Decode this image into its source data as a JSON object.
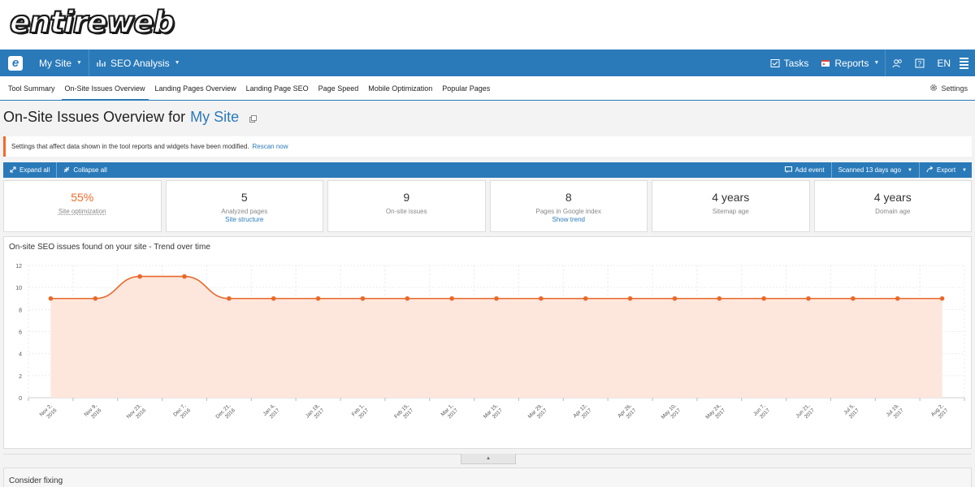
{
  "brand": {
    "logo_text": "entireweb"
  },
  "topbar": {
    "logo_letter": "e",
    "site_menu": "My Site",
    "analysis_menu": "SEO Analysis",
    "tasks": "Tasks",
    "reports": "Reports",
    "language": "EN",
    "colors": {
      "bar": "#2a7ab9"
    }
  },
  "tabs": {
    "items": [
      "Tool Summary",
      "On-Site Issues Overview",
      "Landing Pages Overview",
      "Landing Page SEO",
      "Page Speed",
      "Mobile Optimization",
      "Popular Pages"
    ],
    "active_index": 1,
    "settings": "Settings"
  },
  "page": {
    "title_prefix": "On-Site Issues Overview for",
    "site_name": "My Site"
  },
  "notice": {
    "text": "Settings that affect data shown in the tool reports and widgets have been modified.",
    "link": "Rescan now",
    "accent": "#f06a2a"
  },
  "toolbar": {
    "expand_all": "Expand all",
    "collapse_all": "Collapse all",
    "add_event": "Add event",
    "scanned": "Scanned 13 days ago",
    "export": "Export"
  },
  "metrics": [
    {
      "value": "55%",
      "label": "Site optimization",
      "link": ""
    },
    {
      "value": "5",
      "label": "Analyzed pages",
      "link": "Site structure"
    },
    {
      "value": "9",
      "label": "On-site issues",
      "link": ""
    },
    {
      "value": "8",
      "label": "Pages in Google index",
      "link": "Show trend"
    },
    {
      "value": "4 years",
      "label": "Sitemap age",
      "link": ""
    },
    {
      "value": "4 years",
      "label": "Domain age",
      "link": ""
    }
  ],
  "chart_data": {
    "type": "area",
    "title": "On-site SEO issues found on your site - Trend over time",
    "xlabel": "",
    "ylabel": "",
    "ylim": [
      0,
      12
    ],
    "y_ticks": [
      0,
      2,
      4,
      6,
      8,
      10,
      12
    ],
    "grid": true,
    "x": [
      [
        "Nov 2,",
        "2016"
      ],
      [
        "Nov 9,",
        "2016"
      ],
      [
        "Nov 23,",
        "2016"
      ],
      [
        "Dec 7,",
        "2016"
      ],
      [
        "Dec 21,",
        "2016"
      ],
      [
        "Jan 4,",
        "2017"
      ],
      [
        "Jan 18,",
        "2017"
      ],
      [
        "Feb 1,",
        "2017"
      ],
      [
        "Feb 15,",
        "2017"
      ],
      [
        "Mar 1,",
        "2017"
      ],
      [
        "Mar 15,",
        "2017"
      ],
      [
        "Mar 29,",
        "2017"
      ],
      [
        "Apr 12,",
        "2017"
      ],
      [
        "Apr 26,",
        "2017"
      ],
      [
        "May 10,",
        "2017"
      ],
      [
        "May 24,",
        "2017"
      ],
      [
        "Jun 7,",
        "2017"
      ],
      [
        "Jun 21,",
        "2017"
      ],
      [
        "Jul 5,",
        "2017"
      ],
      [
        "Jul 19,",
        "2017"
      ],
      [
        "Aug 2,",
        "2017"
      ]
    ],
    "values": [
      9,
      9,
      11,
      11,
      9,
      9,
      9,
      9,
      9,
      9,
      9,
      9,
      9,
      9,
      9,
      9,
      9,
      9,
      9,
      9,
      9
    ],
    "colors": {
      "line": "#e8692c",
      "fill": "#fde6dc"
    }
  },
  "sections": {
    "consider_fixing": "Consider fixing"
  }
}
